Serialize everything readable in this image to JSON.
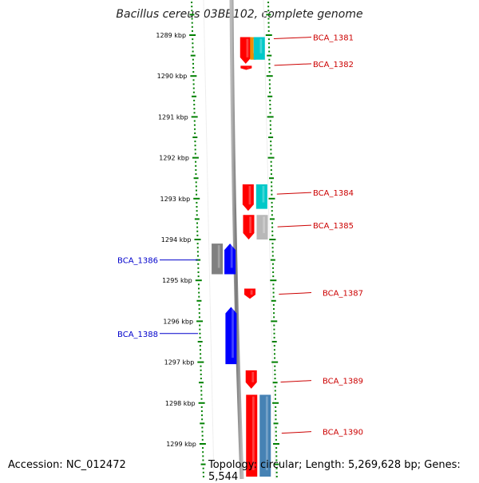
{
  "title": "Bacillus cereus 03BB102, complete genome",
  "accession": "Accession: NC_012472",
  "topology": "Topology: circular; Length: 5,269,628 bp; Genes: 5,544",
  "ruler": {
    "start_kbp": 1289,
    "ticks": [
      "1289 kbp",
      "1290 kbp",
      "1291 kbp",
      "1292 kbp",
      "1293 kbp",
      "1294 kbp",
      "1295 kbp",
      "1296 kbp",
      "1297 kbp",
      "1298 kbp",
      "1299 kbp"
    ]
  },
  "colors": {
    "red": "#ff0000",
    "blue": "#0000ff",
    "orange": "#f08c00",
    "cyan": "#00c8c8",
    "steel": "#4682b4",
    "gray": "#808080",
    "lightgray": "#b8b8b8",
    "ruler": "#008000",
    "label_red": "#cc0000",
    "label_blue": "#0000cc"
  },
  "genes": [
    {
      "name": "red",
      "lane": 1,
      "from": 1289.05,
      "to": 1289.7,
      "dir": "down",
      "color": "red"
    },
    {
      "name": "orange",
      "lane": 2,
      "from": 1289.05,
      "to": 1289.6,
      "dir": "none",
      "color": "orange"
    },
    {
      "name": "cyan",
      "lane": 3,
      "from": 1289.05,
      "to": 1289.6,
      "dir": "none",
      "color": "cyan"
    },
    {
      "name": "red-small",
      "lane": 1,
      "from": 1289.75,
      "to": 1289.85,
      "dir": "down",
      "color": "red"
    },
    {
      "name": "red",
      "lane": 1,
      "from": 1292.65,
      "to": 1293.3,
      "dir": "down",
      "color": "red"
    },
    {
      "name": "cyan",
      "lane": 3,
      "from": 1292.65,
      "to": 1293.25,
      "dir": "none",
      "color": "cyan"
    },
    {
      "name": "red",
      "lane": 1,
      "from": 1293.4,
      "to": 1294.0,
      "dir": "down",
      "color": "red"
    },
    {
      "name": "lightgray",
      "lane": 3,
      "from": 1293.4,
      "to": 1294.0,
      "dir": "none",
      "color": "lightgray"
    },
    {
      "name": "gray",
      "lane": -2,
      "from": 1294.1,
      "to": 1294.85,
      "dir": "none",
      "color": "gray"
    },
    {
      "name": "blue",
      "lane": -1,
      "from": 1294.1,
      "to": 1294.85,
      "dir": "up",
      "color": "blue"
    },
    {
      "name": "red-small",
      "lane": 1,
      "from": 1295.2,
      "to": 1295.45,
      "dir": "down",
      "color": "red"
    },
    {
      "name": "blue",
      "lane": -1,
      "from": 1295.65,
      "to": 1297.05,
      "dir": "up",
      "color": "blue"
    },
    {
      "name": "red-small",
      "lane": 1,
      "from": 1297.2,
      "to": 1297.65,
      "dir": "down",
      "color": "red"
    },
    {
      "name": "red",
      "lane": 1,
      "from": 1297.8,
      "to": 1299.8,
      "dir": "none",
      "color": "red"
    },
    {
      "name": "steel",
      "lane": 3,
      "from": 1297.8,
      "to": 1299.8,
      "dir": "none",
      "color": "steel"
    }
  ],
  "labels": [
    {
      "text": "BCA_1381",
      "side": "right",
      "kbp": 1289.05
    },
    {
      "text": "BCA_1382",
      "side": "right",
      "kbp": 1289.7
    },
    {
      "text": "BCA_1384",
      "side": "right",
      "kbp": 1292.85
    },
    {
      "text": "BCA_1385",
      "side": "right",
      "kbp": 1293.65
    },
    {
      "text": "BCA_1386",
      "side": "left",
      "kbp": 1294.5
    },
    {
      "text": "BCA_1387",
      "side": "right",
      "kbp": 1295.3
    },
    {
      "text": "BCA_1388",
      "side": "left",
      "kbp": 1296.3
    },
    {
      "text": "BCA_1389",
      "side": "right",
      "kbp": 1297.45
    },
    {
      "text": "BCA_1390",
      "side": "right",
      "kbp": 1298.7
    }
  ]
}
